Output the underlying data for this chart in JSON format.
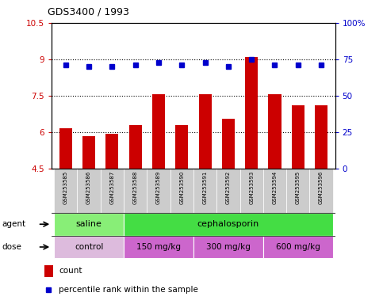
{
  "title": "GDS3400 / 1993",
  "samples": [
    "GSM253585",
    "GSM253586",
    "GSM253587",
    "GSM253588",
    "GSM253589",
    "GSM253590",
    "GSM253591",
    "GSM253592",
    "GSM253593",
    "GSM253594",
    "GSM253595",
    "GSM253596"
  ],
  "bar_values": [
    6.15,
    5.85,
    5.95,
    6.3,
    7.55,
    6.3,
    7.55,
    6.55,
    9.1,
    7.55,
    7.1,
    7.1
  ],
  "dot_values": [
    71,
    70,
    70,
    71,
    73,
    71,
    73,
    70,
    75,
    71,
    71,
    71
  ],
  "bar_color": "#cc0000",
  "dot_color": "#0000cc",
  "ylim_left": [
    4.5,
    10.5
  ],
  "ylim_right": [
    0,
    100
  ],
  "yticks_left": [
    4.5,
    6.0,
    7.5,
    9.0,
    10.5
  ],
  "yticks_left_labels": [
    "4.5",
    "6",
    "7.5",
    "9",
    "10.5"
  ],
  "yticks_right": [
    0,
    25,
    50,
    75,
    100
  ],
  "yticks_right_labels": [
    "0",
    "25",
    "50",
    "75",
    "100%"
  ],
  "hlines": [
    6.0,
    7.5,
    9.0
  ],
  "agent_groups": [
    {
      "label": "saline",
      "start": 0,
      "end": 2,
      "color": "#88ee77"
    },
    {
      "label": "cephalosporin",
      "start": 3,
      "end": 11,
      "color": "#44dd44"
    }
  ],
  "dose_groups": [
    {
      "label": "control",
      "start": 0,
      "end": 2,
      "color": "#ddbbdd"
    },
    {
      "label": "150 mg/kg",
      "start": 3,
      "end": 5,
      "color": "#cc66cc"
    },
    {
      "label": "300 mg/kg",
      "start": 6,
      "end": 8,
      "color": "#cc66cc"
    },
    {
      "label": "600 mg/kg",
      "start": 9,
      "end": 11,
      "color": "#cc66cc"
    }
  ],
  "legend_count_label": "count",
  "legend_pct_label": "percentile rank within the sample",
  "agent_label": "agent",
  "dose_label": "dose",
  "sample_bg": "#cccccc",
  "plot_bg": "#ffffff",
  "fig_bg": "#ffffff"
}
